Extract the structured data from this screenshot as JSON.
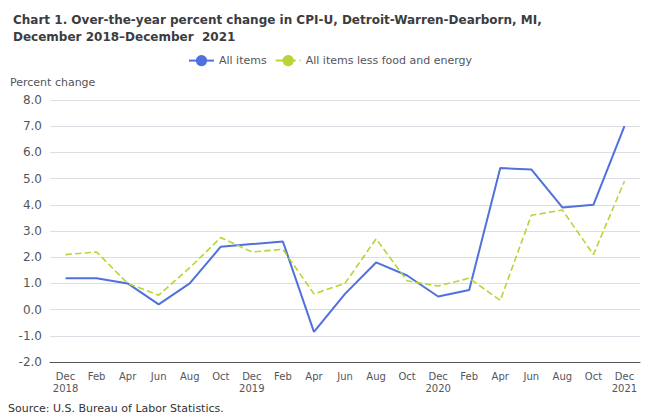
{
  "chart_data": {
    "type": "line",
    "title": "Chart 1. Over-the-year percent change in CPI-U, Detroit-Warren-Dearborn, MI,\nDecember 2018–December  2021",
    "ylabel": "Percent change",
    "annotations": [
      "Source: U.S. Bureau of Labor Statistics."
    ],
    "categories": [
      "Dec\n2018",
      "Feb",
      "Apr",
      "Jun",
      "Aug",
      "Oct",
      "Dec\n2019",
      "Feb",
      "Apr",
      "Jun",
      "Aug",
      "Oct",
      "Dec\n2020",
      "Feb",
      "Apr",
      "Jun",
      "Aug",
      "Oct",
      "Dec\n2021"
    ],
    "series": [
      {
        "name": "All items",
        "line_style": "solid",
        "values": [
          1.2,
          1.2,
          1.0,
          0.2,
          1.0,
          2.4,
          2.5,
          2.6,
          -0.85,
          0.6,
          1.8,
          1.3,
          0.5,
          0.75,
          5.4,
          5.35,
          3.9,
          4.0,
          7.0
        ]
      },
      {
        "name": "All items less food and energy",
        "line_style": "dashed",
        "values": [
          2.1,
          2.2,
          1.0,
          0.55,
          1.6,
          2.75,
          2.2,
          2.3,
          0.6,
          1.0,
          2.7,
          1.1,
          0.9,
          1.2,
          0.35,
          3.6,
          3.8,
          2.1,
          4.9
        ]
      }
    ],
    "ylim": [
      -2.0,
      8.0
    ],
    "yticks": [
      {
        "value": -2.0,
        "label": "-2.0"
      },
      {
        "value": -1.0,
        "label": "-1.0"
      },
      {
        "value": 0.0,
        "label": "0.0"
      },
      {
        "value": 1.0,
        "label": "1.0"
      },
      {
        "value": 2.0,
        "label": "2.0"
      },
      {
        "value": 3.0,
        "label": "3.0"
      },
      {
        "value": 4.0,
        "label": "4.0"
      },
      {
        "value": 5.0,
        "label": "5.0"
      },
      {
        "value": 6.0,
        "label": "6.0"
      },
      {
        "value": 7.0,
        "label": "7.0"
      },
      {
        "value": 8.0,
        "label": "8.0"
      }
    ],
    "grid": true,
    "legend": "top"
  }
}
